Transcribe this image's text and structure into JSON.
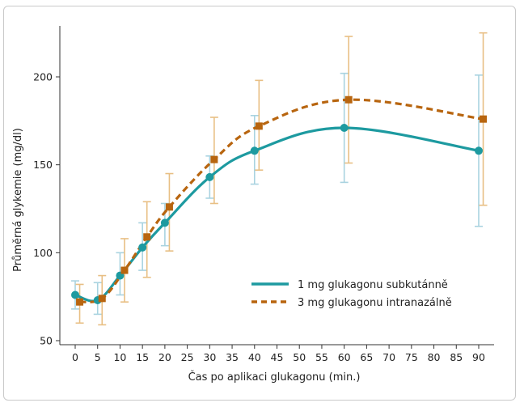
{
  "chart_data": {
    "type": "line",
    "xlabel": "Čas po aplikaci glukagonu (min.)",
    "ylabel": "Průměrná glykemie (mg/dl)",
    "xlim": [
      -2,
      93
    ],
    "ylim": [
      47,
      225
    ],
    "x_ticks": [
      0,
      5,
      10,
      15,
      20,
      25,
      30,
      35,
      40,
      45,
      50,
      55,
      60,
      65,
      70,
      75,
      80,
      85,
      90
    ],
    "y_ticks": [
      50,
      100,
      150,
      200
    ],
    "legend_position": "bottom-right",
    "series": [
      {
        "name": "1 mg glukagonu subkutánně",
        "color": "#1d9aa0",
        "errorbar_color": "#a9d3e0",
        "line_style": "solid",
        "marker": "circle",
        "x": [
          0,
          5,
          10,
          15,
          20,
          30,
          40,
          60,
          90
        ],
        "y": [
          76,
          73,
          87,
          103,
          117,
          143,
          158,
          171,
          158
        ],
        "err_low": [
          68,
          65,
          76,
          90,
          104,
          131,
          139,
          140,
          115
        ],
        "err_high": [
          84,
          83,
          100,
          117,
          128,
          155,
          178,
          202,
          201
        ]
      },
      {
        "name": "3 mg glukagonu intranazálně",
        "color": "#b8650f",
        "errorbar_color": "#e8bf84",
        "line_style": "dashed",
        "marker": "square",
        "x": [
          1,
          6,
          11,
          16,
          21,
          31,
          41,
          61,
          91
        ],
        "y": [
          72,
          74,
          90,
          109,
          126,
          153,
          172,
          187,
          176
        ],
        "err_low": [
          60,
          59,
          72,
          86,
          101,
          128,
          147,
          151,
          127
        ],
        "err_high": [
          82,
          87,
          108,
          129,
          145,
          177,
          198,
          223,
          225
        ]
      }
    ]
  }
}
